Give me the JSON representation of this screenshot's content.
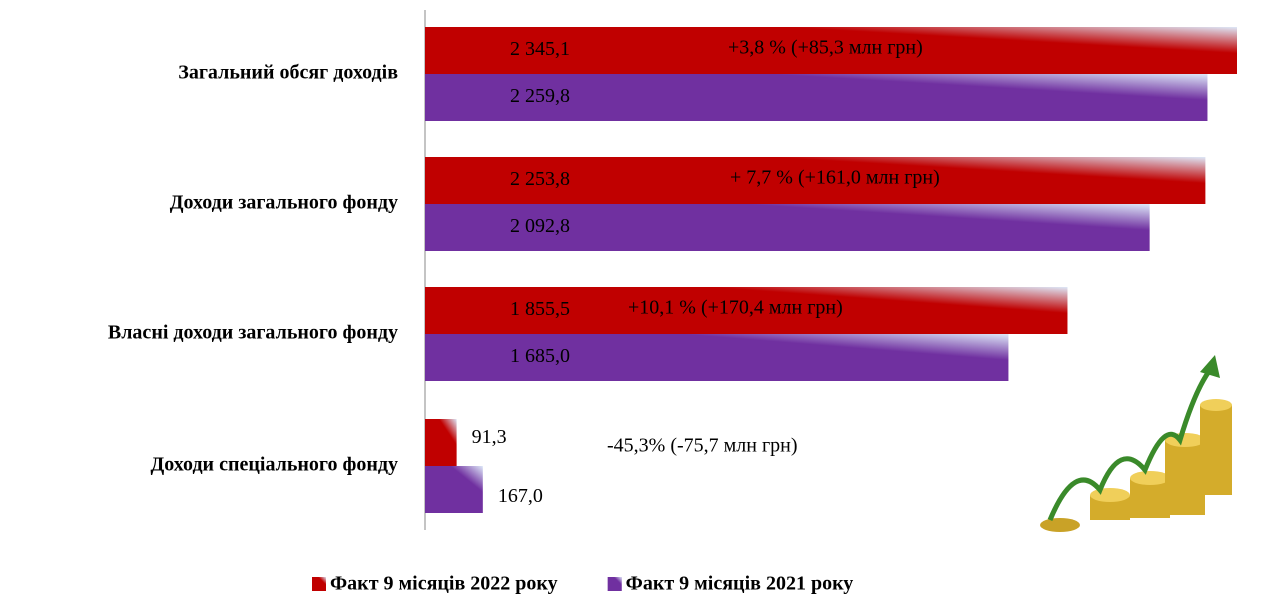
{
  "chart_data": {
    "type": "bar",
    "orientation": "horizontal",
    "categories": [
      "Загальний обсяг доходів",
      "Доходи загального фонду",
      "Власні доходи загального фонду",
      "Доходи спеціального фонду"
    ],
    "series": [
      {
        "name": "Факт 9 місяців 2022 року",
        "color": "#c00000",
        "values": [
          2345.1,
          2253.8,
          1855.5,
          91.3
        ],
        "value_labels": [
          "2 345,1",
          "2 253,8",
          "1 855,5",
          "91,3"
        ]
      },
      {
        "name": "Факт 9 місяців 2021 року",
        "color": "#7030a0",
        "values": [
          2259.8,
          2092.8,
          1685.0,
          167.0
        ],
        "value_labels": [
          "2 259,8",
          "2 092,8",
          "1 685,0",
          "167,0"
        ]
      }
    ],
    "annotations": [
      "+3,8 % (+85,3 млн грн)",
      "+ 7,7 % (+161,0 млн грн)",
      "+10,1 % (+170,4 млн грн)",
      "-45,3% (-75,7 млн грн)"
    ],
    "legend": "bottom"
  }
}
